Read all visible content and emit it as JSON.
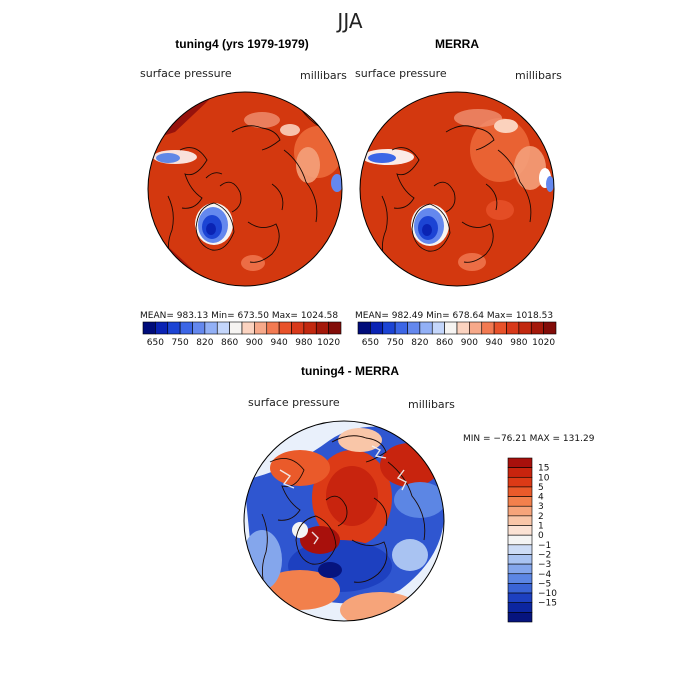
{
  "figure_title": "JJA",
  "colors": {
    "land_outline": "#1a0a05",
    "plot_border": "#000000"
  },
  "chart_data": [
    {
      "type": "polar_map",
      "title": "tuning4 (yrs 1979-1979)",
      "field_label": "surface pressure",
      "units_label": "millibars",
      "stats_text": "MEAN= 983.13   Min= 673.50   Max= 1024.58",
      "stats": {
        "mean": 983.13,
        "min": 673.5,
        "max": 1024.58
      },
      "colorbar": {
        "orientation": "horizontal",
        "tick_labels": [
          "650",
          "750",
          "820",
          "860",
          "900",
          "940",
          "980",
          "1020"
        ],
        "colors": [
          "#000c7a",
          "#0a23b4",
          "#1c44d4",
          "#3c66e6",
          "#6488ee",
          "#92b0f6",
          "#c4d6fb",
          "#f6f4f2",
          "#fbd3c0",
          "#f7a98a",
          "#f27a52",
          "#e8522a",
          "#d8391a",
          "#c2280f",
          "#a4180a",
          "#820c08"
        ]
      }
    },
    {
      "type": "polar_map",
      "title": "MERRA",
      "field_label": "surface pressure",
      "units_label": "millibars",
      "stats_text": "MEAN= 982.49   Min= 678.64   Max= 1018.53",
      "stats": {
        "mean": 982.49,
        "min": 678.64,
        "max": 1018.53
      },
      "colorbar": {
        "orientation": "horizontal",
        "tick_labels": [
          "650",
          "750",
          "820",
          "860",
          "900",
          "940",
          "980",
          "1020"
        ],
        "colors": [
          "#000c7a",
          "#0a23b4",
          "#1c44d4",
          "#3c66e6",
          "#6488ee",
          "#92b0f6",
          "#c4d6fb",
          "#f6f4f2",
          "#fbd3c0",
          "#f7a98a",
          "#f27a52",
          "#e8522a",
          "#d8391a",
          "#c2280f",
          "#a4180a",
          "#820c08"
        ]
      }
    },
    {
      "type": "polar_map",
      "title": "tuning4 - MERRA",
      "field_label": "surface pressure",
      "units_label": "millibars",
      "stats_text": "MIN = −76.21  MAX = 131.29",
      "stats": {
        "min": -76.21,
        "max": 131.29
      },
      "colorbar": {
        "orientation": "vertical",
        "tick_labels": [
          "15",
          "10",
          "5",
          "4",
          "3",
          "2",
          "1",
          "0",
          "−1",
          "−2",
          "−3",
          "−4",
          "−5",
          "−10",
          "−15"
        ],
        "colors": [
          "#a8100c",
          "#c8240e",
          "#dc3a16",
          "#ea5a2a",
          "#f2804c",
          "#f6a47a",
          "#f9c6a8",
          "#fbe2d4",
          "#f4f4f4",
          "#cddcf6",
          "#a9c3f2",
          "#84a6ec",
          "#5c86e4",
          "#3a64d6",
          "#1d40c0",
          "#0c26a0",
          "#06147e"
        ]
      }
    }
  ]
}
